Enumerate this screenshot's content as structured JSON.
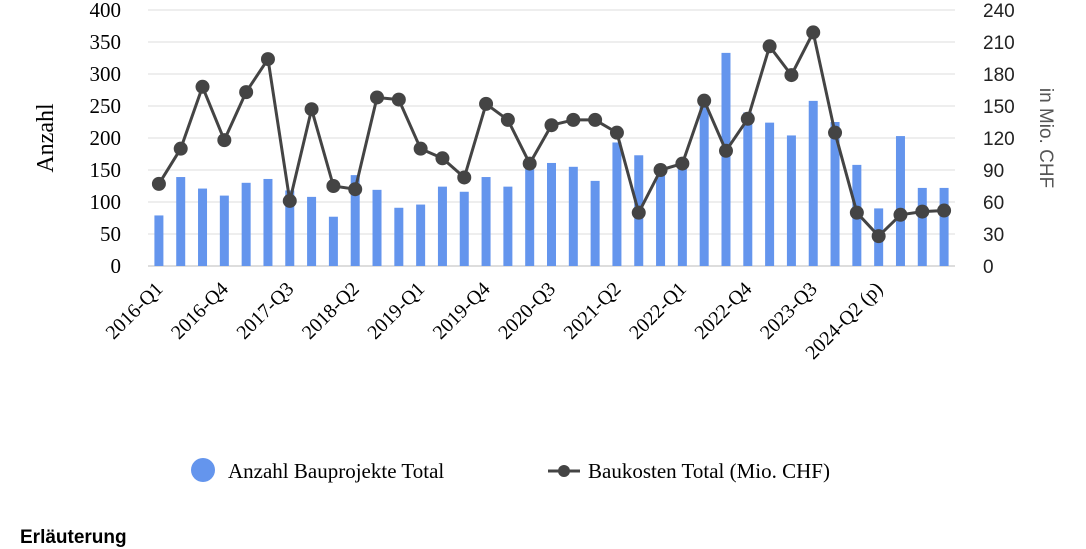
{
  "chart_data": {
    "type": "bar",
    "categories": [
      "2016-Q1",
      "2016-Q2",
      "2016-Q3",
      "2016-Q4",
      "2017-Q1",
      "2017-Q2",
      "2017-Q3",
      "2017-Q4",
      "2018-Q1",
      "2018-Q2",
      "2018-Q3",
      "2018-Q4",
      "2019-Q1",
      "2019-Q2",
      "2019-Q3",
      "2019-Q4",
      "2020-Q1",
      "2020-Q2",
      "2020-Q3",
      "2020-Q4",
      "2021-Q1",
      "2021-Q2",
      "2021-Q3",
      "2021-Q4",
      "2022-Q1",
      "2022-Q2",
      "2022-Q3",
      "2022-Q4",
      "2023-Q1",
      "2023-Q2",
      "2023-Q3",
      "2023-Q4",
      "2024-Q1",
      "2024-Q2 (p)",
      "2024-Q3",
      "2024-Q4",
      "2025-Q1"
    ],
    "x_tick_labels": [
      "2016-Q1",
      "2016-Q4",
      "2017-Q3",
      "2018-Q2",
      "2019-Q1",
      "2019-Q4",
      "2020-Q3",
      "2021-Q2",
      "2022-Q1",
      "2022-Q4",
      "2023-Q3",
      "2024-Q2 (p)"
    ],
    "series": [
      {
        "name": "Anzahl Bauprojekte Total",
        "type": "bar",
        "axis": "left",
        "color": "#6495ED",
        "values": [
          79,
          139,
          121,
          110,
          130,
          136,
          118,
          108,
          77,
          142,
          119,
          91,
          96,
          124,
          116,
          139,
          124,
          163,
          161,
          155,
          133,
          193,
          173,
          152,
          153,
          251,
          333,
          240,
          224,
          204,
          258,
          225,
          158,
          90,
          203,
          122,
          122
        ]
      },
      {
        "name": "Baukosten Total (Mio. CHF)",
        "type": "line",
        "axis": "right",
        "color": "#444444",
        "values": [
          77,
          110,
          168,
          118,
          163,
          194,
          61,
          147,
          75,
          72,
          158,
          156,
          110,
          101,
          83,
          152,
          137,
          96,
          132,
          137,
          137,
          125,
          50,
          90,
          96,
          155,
          108,
          138,
          206,
          179,
          219,
          125,
          50,
          28,
          48,
          51,
          52
        ]
      }
    ],
    "ylabel_left": "Anzahl",
    "ylabel_right": "in Mio. CHF",
    "ylim_left": [
      0,
      400
    ],
    "yticks_left": [
      0,
      50,
      100,
      150,
      200,
      250,
      300,
      350,
      400
    ],
    "ylim_right": [
      0,
      240
    ],
    "yticks_right": [
      0,
      30,
      60,
      90,
      120,
      150,
      180,
      210,
      240
    ],
    "grid": true,
    "legend_position": "bottom"
  },
  "section": {
    "heading": "Erläuterung"
  }
}
